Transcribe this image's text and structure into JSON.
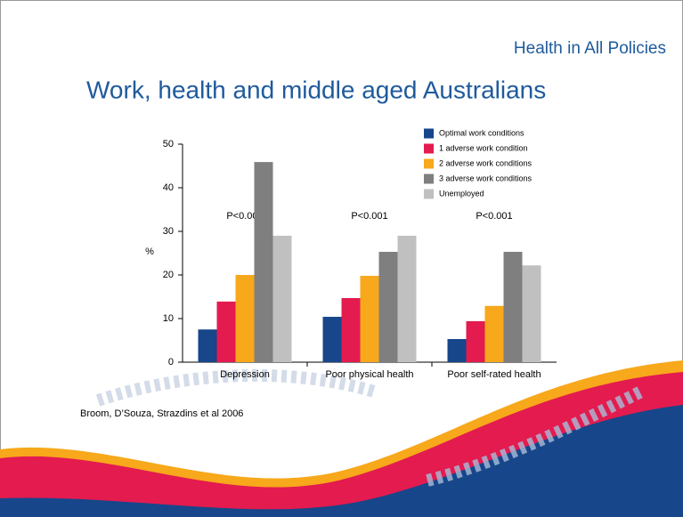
{
  "header": "Health in All Policies",
  "chart_data": {
    "type": "bar",
    "title": "Work, health and middle aged Australians",
    "y_label": "%",
    "categories": [
      "Depression",
      "Poor physical health",
      "Poor self-rated health"
    ],
    "series": [
      {
        "name": "Optimal work conditions",
        "color": "#17468a",
        "values": [
          7.5,
          10.4,
          5.3
        ]
      },
      {
        "name": "1 adverse work condition",
        "color": "#e31b4f",
        "values": [
          13.9,
          14.7,
          9.4
        ]
      },
      {
        "name": "2 adverse work conditions",
        "color": "#f7a81b",
        "values": [
          20,
          19.8,
          12.9
        ]
      },
      {
        "name": "3 adverse work conditions",
        "color": "#7f7f7f",
        "values": [
          45.9,
          25.3,
          25.3
        ]
      },
      {
        "name": "Unemployed",
        "color": "#c0c0c0",
        "values": [
          29,
          29,
          22.2
        ]
      }
    ],
    "annotations": [
      "P<0.001",
      "P<0.001",
      "P<0.001"
    ],
    "ylim": [
      0,
      50
    ],
    "yticks": [
      0,
      10,
      20,
      30,
      40,
      50
    ],
    "legend": "top-right"
  },
  "footer": "Broom, D’Souza, Strazdins et al 2006"
}
